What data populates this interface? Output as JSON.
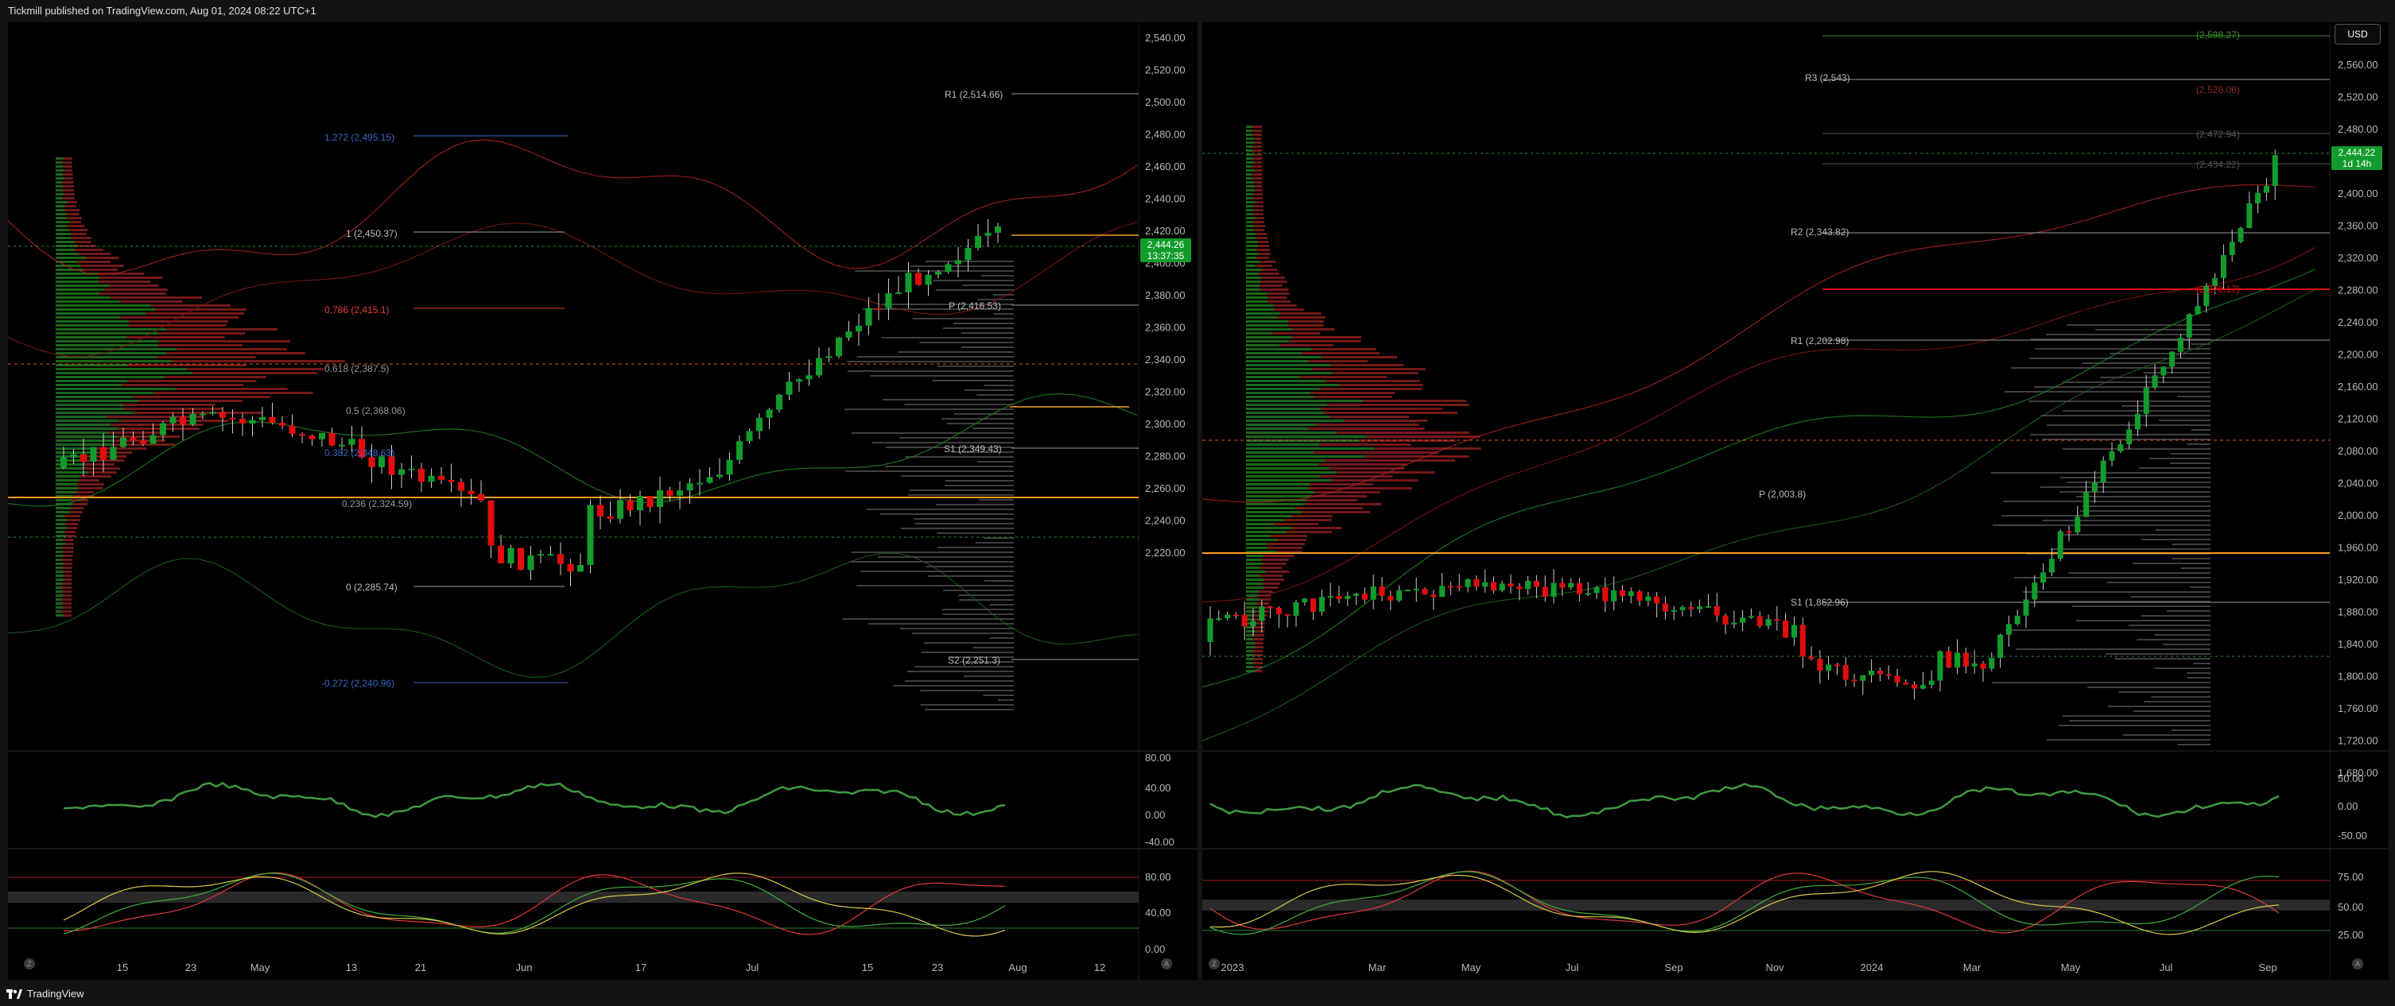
{
  "header": {
    "publisher_text": "Tickmill published on TradingView.com, Aug 01, 2024 08:22 UTC+1"
  },
  "footer": {
    "brand": "TradingView",
    "logo_icon": "tradingview-logo-icon"
  },
  "colors": {
    "up": "#129c2c",
    "down": "#e20d0d",
    "bg": "#000000",
    "orange": "#f59b23",
    "blue": "#3a66c4",
    "purple": "#b44fe0"
  },
  "left_chart": {
    "price_axis": [
      "2,540.00",
      "2,520.00",
      "2,500.00",
      "2,480.00",
      "2,460.00",
      "2,440.00",
      "2,420.00",
      "2,400.00",
      "2,380.00",
      "2,360.00",
      "2,340.00",
      "2,320.00",
      "2,300.00",
      "2,280.00",
      "2,260.00",
      "2,240.00",
      "2,220.00"
    ],
    "time_axis": [
      "15",
      "23",
      "May",
      "13",
      "21",
      "Jun",
      "17",
      "Jul",
      "15",
      "23",
      "Aug",
      "12"
    ],
    "current_price": "2,444.26",
    "countdown": "13:37:35",
    "fib_labels": [
      "1.272 (2,495.15)",
      "1 (2,450.37)",
      "0.786 (2,415.1)",
      "0.618 (2,387.5)",
      "0.5 (2,368.06)",
      "0.382 (2,348.63)",
      "0.236 (2,324.59)",
      "0 (2,285.74)",
      "-0.272 (2,240.96)"
    ],
    "pivot_labels": [
      "R1 (2,514.66)",
      "P (2,416.53)",
      "S1 (2,349.43)",
      "S2 (2,251.3)"
    ],
    "osc1_axis": [
      "80.00",
      "40.00",
      "0.00",
      "-40.00"
    ],
    "osc2_axis": [
      "80.00",
      "40.00",
      "0.00"
    ],
    "scale_btn": "Z",
    "auto_btn": "A"
  },
  "right_chart": {
    "currency_button": "USD",
    "price_axis": [
      "2,560.00",
      "2,520.00",
      "2,480.00",
      "2,440.00",
      "2,400.00",
      "2,360.00",
      "2,320.00",
      "2,280.00",
      "2,240.00",
      "2,200.00",
      "2,160.00",
      "2,120.00",
      "2,080.00",
      "2,040.00",
      "2,000.00",
      "1,960.00",
      "1,920.00",
      "1,880.00",
      "1,840.00",
      "1,800.00",
      "1,760.00",
      "1,720.00",
      "1,680.00"
    ],
    "time_axis": [
      "2023",
      "Mar",
      "May",
      "Jul",
      "Sep",
      "Nov",
      "2024",
      "Mar",
      "May",
      "Jul",
      "Sep"
    ],
    "current_price": "2,444.22",
    "countdown": "1d 14h",
    "level_labels": [
      "(2,598.27)",
      "R3 (2,543)",
      "(2,528.06)",
      "(2,472.94)",
      "(2,434.22)",
      "R2 (2,343.82)",
      "(2,270.17)",
      "R1 (2,202.98)",
      "P (2,003.8)",
      "S1 (1,862.96)"
    ],
    "osc1_axis": [
      "50.00",
      "0.00",
      "-50.00"
    ],
    "osc2_axis": [
      "75.00",
      "50.00",
      "25.00"
    ],
    "scale_btn": "Z",
    "auto_btn": "A"
  }
}
